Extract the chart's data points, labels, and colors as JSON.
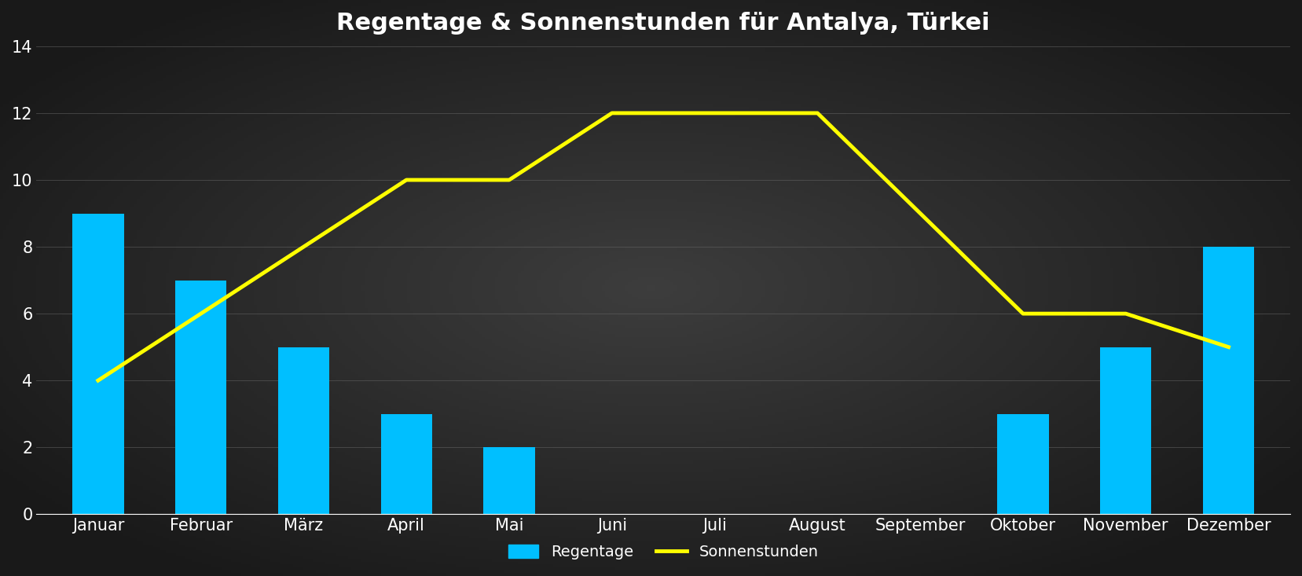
{
  "title": "Regentage & Sonnenstunden für Antalya, Türkei",
  "months": [
    "Januar",
    "Februar",
    "März",
    "April",
    "Mai",
    "Juni",
    "Juli",
    "August",
    "September",
    "Oktober",
    "November",
    "Dezember"
  ],
  "regentage": [
    9,
    7,
    5,
    3,
    2,
    0,
    0,
    0,
    0,
    3,
    5,
    8
  ],
  "sonnenstunden": [
    4,
    6,
    8,
    10,
    10,
    12,
    12,
    12,
    9,
    6,
    6,
    5
  ],
  "bar_color": "#00BFFF",
  "line_color": "#FFFF00",
  "bg_dark": "#1a1a1a",
  "bg_mid": "#3d3d3d",
  "text_color": "#ffffff",
  "grid_color": "#666666",
  "ylim": [
    0,
    14
  ],
  "yticks": [
    0,
    2,
    4,
    6,
    8,
    10,
    12,
    14
  ],
  "title_fontsize": 22,
  "tick_fontsize": 15,
  "legend_fontsize": 14,
  "line_width": 3.5,
  "bar_width": 0.5
}
